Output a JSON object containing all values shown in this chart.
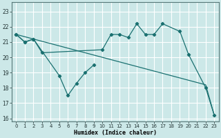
{
  "xlabel": "Humidex (Indice chaleur)",
  "background_color": "#cce8e8",
  "grid_color": "#ffffff",
  "line_color": "#1a7070",
  "xlim": [
    -0.5,
    23.5
  ],
  "ylim": [
    15.8,
    23.6
  ],
  "yticks": [
    16,
    17,
    18,
    19,
    20,
    21,
    22,
    23
  ],
  "xticks": [
    0,
    1,
    2,
    3,
    4,
    5,
    6,
    7,
    8,
    9,
    10,
    11,
    12,
    13,
    14,
    15,
    16,
    17,
    18,
    19,
    20,
    21,
    22,
    23
  ],
  "line1_x": [
    0,
    1,
    2,
    3,
    10,
    11,
    12,
    13,
    14,
    15,
    16,
    17,
    19,
    20,
    22,
    23
  ],
  "line1_y": [
    21.5,
    21.0,
    21.2,
    20.3,
    20.5,
    21.5,
    21.5,
    21.3,
    22.2,
    21.5,
    21.5,
    22.2,
    21.7,
    20.2,
    18.0,
    16.2
  ],
  "line2_x": [
    0,
    1,
    2,
    5,
    6,
    7,
    8,
    9
  ],
  "line2_y": [
    21.5,
    21.0,
    21.2,
    18.8,
    17.5,
    18.3,
    19.0,
    19.5
  ],
  "line3_x": [
    0,
    1,
    2,
    3,
    4,
    5,
    6,
    7,
    8,
    9,
    10,
    11,
    12,
    13,
    14,
    15,
    16,
    17,
    18,
    19,
    20,
    21,
    22,
    23
  ],
  "line3_y": [
    21.5,
    21.35,
    21.2,
    21.05,
    20.9,
    20.75,
    20.6,
    20.45,
    20.3,
    20.15,
    20.0,
    19.85,
    19.7,
    19.55,
    19.4,
    19.25,
    19.1,
    18.95,
    18.8,
    18.65,
    18.5,
    18.35,
    18.2,
    16.2
  ]
}
